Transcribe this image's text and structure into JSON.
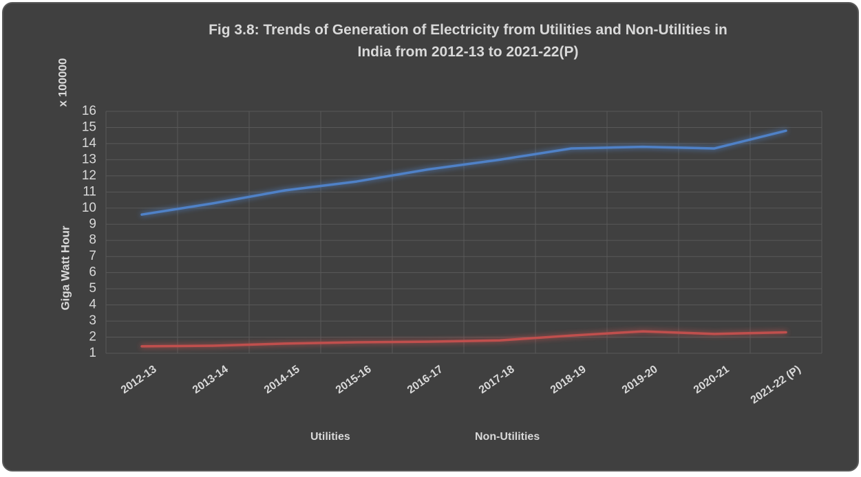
{
  "chart_data": {
    "type": "line",
    "title": "Fig 3.8: Trends of Generation of Electricity from Utilities and Non-Utilities in India from 2012-13 to 2021-22(P)",
    "y_axis_label": "Giga Watt Hour",
    "y_unit_label": "x 100000",
    "categories": [
      "2012-13",
      "2013-14",
      "2014-15",
      "2015-16",
      "2016-17",
      "2017-18",
      "2018-19",
      "2019-20",
      "2020-21",
      "2021-22 (P)"
    ],
    "series": [
      {
        "name": "Utilities",
        "color": "#4f81c7",
        "values": [
          9.6,
          10.3,
          11.1,
          11.65,
          12.4,
          13.0,
          13.7,
          13.8,
          13.7,
          14.8
        ]
      },
      {
        "name": "Non-Utilities",
        "color": "#c0504d",
        "values": [
          1.43,
          1.47,
          1.6,
          1.68,
          1.72,
          1.8,
          2.1,
          2.36,
          2.2,
          2.3
        ]
      }
    ],
    "ylim": [
      1,
      16
    ],
    "yticks": [
      1,
      2,
      3,
      4,
      5,
      6,
      7,
      8,
      9,
      10,
      11,
      12,
      13,
      14,
      15,
      16
    ],
    "grid": true,
    "legend": "bottom"
  }
}
